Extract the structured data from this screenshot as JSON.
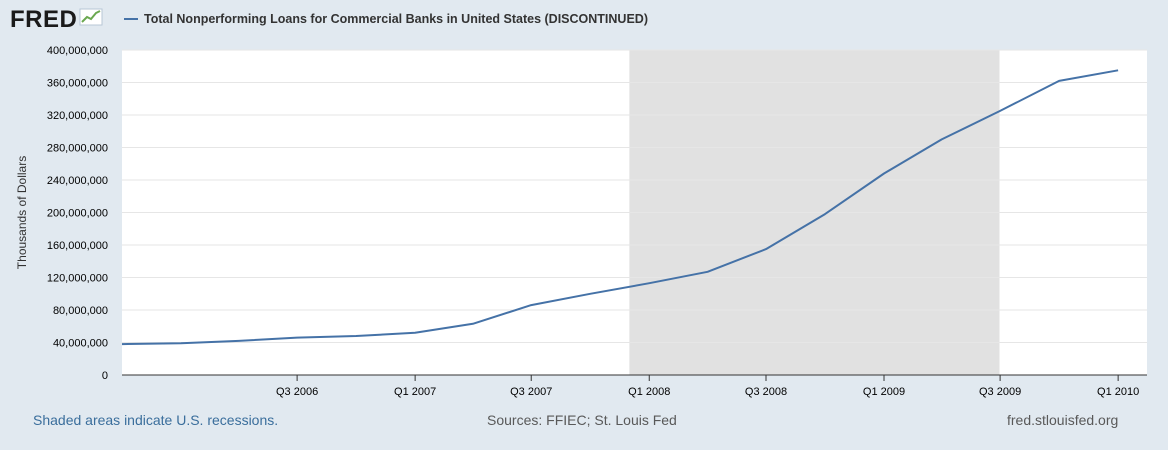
{
  "header": {
    "logo_text": "FRED",
    "logo_icon": "chart-line-icon",
    "series_title": "Total Nonperforming Loans for Commercial Banks in United States (DISCONTINUED)"
  },
  "colors": {
    "series": "#4572a7",
    "recession": "#e1e1e1",
    "background": "#e1e9f0",
    "plot": "#ffffff",
    "footer_link": "#3a6e9c"
  },
  "chart_data": {
    "type": "line",
    "ylabel": "Thousands of Dollars",
    "ylim": [
      0,
      400000000
    ],
    "y_ticks": [
      "0",
      "40,000,000",
      "80,000,000",
      "120,000,000",
      "160,000,000",
      "200,000,000",
      "240,000,000",
      "280,000,000",
      "320,000,000",
      "360,000,000",
      "400,000,000"
    ],
    "x_range": [
      "2005-10-01",
      "2010-02-15"
    ],
    "x_ticks": [
      {
        "label": "Q3 2006",
        "date": "2006-07-01"
      },
      {
        "label": "Q1 2007",
        "date": "2007-01-01"
      },
      {
        "label": "Q3 2007",
        "date": "2007-07-01"
      },
      {
        "label": "Q1 2008",
        "date": "2008-01-01"
      },
      {
        "label": "Q3 2008",
        "date": "2008-07-01"
      },
      {
        "label": "Q1 2009",
        "date": "2009-01-01"
      },
      {
        "label": "Q3 2009",
        "date": "2009-07-01"
      },
      {
        "label": "Q1 2010",
        "date": "2010-01-01"
      }
    ],
    "recession": {
      "start": "2007-12-01",
      "end": "2009-06-30"
    },
    "grid": true,
    "series": [
      {
        "dates": [
          "2005-10-01",
          "2006-01-01",
          "2006-04-01",
          "2006-07-01",
          "2006-10-01",
          "2007-01-01",
          "2007-04-01",
          "2007-07-01",
          "2007-10-01",
          "2008-01-01",
          "2008-04-01",
          "2008-07-01",
          "2008-10-01",
          "2009-01-01",
          "2009-04-01",
          "2009-07-01",
          "2009-10-01",
          "2010-01-01"
        ],
        "values": [
          38000000,
          39000000,
          42000000,
          46000000,
          48000000,
          52000000,
          63000000,
          86000000,
          100000000,
          113000000,
          127000000,
          155000000,
          198000000,
          248000000,
          290000000,
          325000000,
          362000000,
          375000000
        ]
      }
    ]
  },
  "footer": {
    "left_note": "Shaded areas indicate U.S. recessions.",
    "sources": "Sources: FFIEC; St. Louis Fed",
    "site": "fred.stlouisfed.org"
  }
}
